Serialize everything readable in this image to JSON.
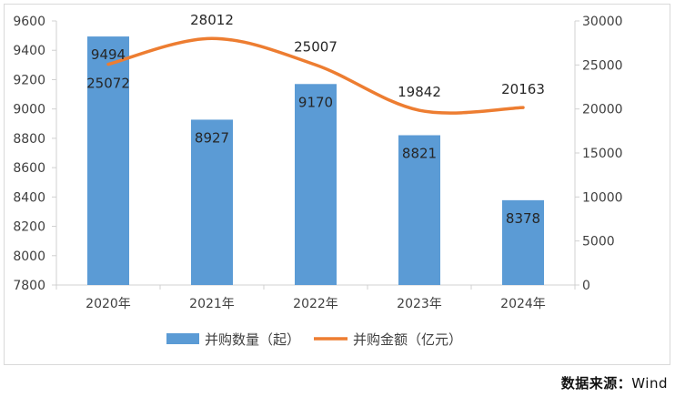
{
  "chart_data": {
    "type": "bar+line",
    "categories": [
      "2020年",
      "2021年",
      "2022年",
      "2023年",
      "2024年"
    ],
    "series": [
      {
        "name": "并购数量（起）",
        "type": "bar",
        "axis": "left",
        "values": [
          9494,
          8927,
          9170,
          8821,
          8378
        ],
        "color": "#5b9bd5"
      },
      {
        "name": "并购金额（亿元）",
        "type": "line",
        "axis": "right",
        "smooth": true,
        "values": [
          25072,
          28012,
          25007,
          19842,
          20163
        ],
        "color": "#ed7d31"
      }
    ],
    "y_left": {
      "range": [
        7800,
        9600
      ],
      "ticks": [
        "7800",
        "8000",
        "8200",
        "8400",
        "8600",
        "8800",
        "9000",
        "9200",
        "9400",
        "9600"
      ]
    },
    "y_right": {
      "range": [
        0,
        30000
      ],
      "ticks": [
        "0",
        "5000",
        "10000",
        "15000",
        "20000",
        "25000",
        "30000"
      ]
    },
    "grid": false,
    "legend": "bottom"
  },
  "source": {
    "label": "数据来源：",
    "value": "Wind"
  }
}
